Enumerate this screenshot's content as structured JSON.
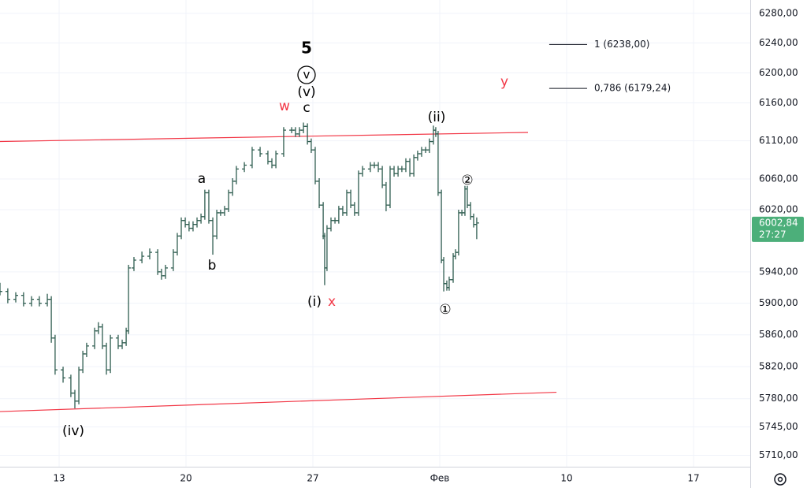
{
  "chart_data": {
    "type": "ohlc",
    "log_scale": true,
    "grid": true,
    "color": "#2f5d50",
    "x": [
      9.74,
      10.17,
      10.61,
      11.04,
      11.48,
      11.91,
      12.35,
      12.57,
      12.78,
      13.22,
      13.65,
      13.87,
      14.09,
      14.31,
      14.52,
      14.96,
      15.17,
      15.39,
      15.61,
      15.83,
      16.26,
      16.48,
      16.7,
      16.83,
      17.13,
      17.57,
      18.0,
      18.44,
      18.65,
      18.87,
      19.3,
      19.52,
      19.74,
      19.96,
      20.17,
      20.39,
      20.61,
      20.83,
      21.04,
      21.26,
      21.48,
      21.7,
      21.91,
      22.13,
      22.35,
      22.57,
      22.78,
      23.22,
      23.65,
      24.09,
      24.52,
      24.74,
      24.96,
      25.39,
      25.83,
      26.04,
      26.26,
      26.48,
      26.7,
      26.91,
      27.13,
      27.35,
      27.57,
      27.65,
      27.78,
      28.0,
      28.22,
      28.43,
      28.65,
      28.87,
      29.09,
      29.3,
      29.52,
      29.74,
      30.17,
      30.39,
      30.61,
      30.83,
      31.04,
      31.26,
      31.48,
      31.7,
      31.91,
      32.13,
      32.35,
      32.57,
      32.78,
      33.0,
      33.22,
      33.43,
      33.65,
      33.78,
      33.91,
      34.09,
      34.22,
      34.39,
      34.52,
      34.74,
      34.87,
      35.04,
      35.22,
      35.39,
      35.52,
      35.7,
      35.87,
      36.04
    ],
    "open": [
      5920,
      5915,
      5905,
      5910,
      5900,
      5905,
      5900,
      5905,
      5856,
      5816,
      5806,
      5787,
      5777,
      5816,
      5836,
      5846,
      5865,
      5870,
      5846,
      5816,
      5856,
      5846,
      5850,
      5865,
      5945,
      5955,
      5960,
      5965,
      5940,
      5935,
      5945,
      5965,
      5986,
      6006,
      6001,
      5996,
      6001,
      6006,
      6011,
      6042,
      6006,
      5986,
      6016,
      6016,
      6021,
      6042,
      6057,
      6073,
      6078,
      6098,
      6093,
      6083,
      6078,
      6093,
      6124,
      6124,
      6119,
      6124,
      6129,
      6109,
      6098,
      6057,
      6026,
      5986,
      5945,
      5996,
      6006,
      6006,
      6021,
      6016,
      6042,
      6026,
      6016,
      6067,
      6073,
      6078,
      6078,
      6073,
      6052,
      6026,
      6073,
      6067,
      6073,
      6073,
      6083,
      6067,
      6088,
      6093,
      6098,
      6098,
      6109,
      6124,
      6119,
      6042,
      5955,
      5925,
      5920,
      5930,
      5960,
      5965,
      6016,
      6016,
      6047,
      6026,
      6011,
      6001
    ],
    "high": [
      5926,
      5919,
      5914,
      5914,
      5909,
      5909,
      5912,
      5909,
      5860,
      5820,
      5810,
      5791,
      5820,
      5840,
      5850,
      5869,
      5876,
      5874,
      5850,
      5860,
      5860,
      5854,
      5869,
      5949,
      5959,
      5966,
      5970,
      5969,
      5944,
      5949,
      5969,
      5990,
      6010,
      6010,
      6005,
      6005,
      6010,
      6015,
      6046,
      6046,
      6010,
      6020,
      6020,
      6025,
      6046,
      6061,
      6077,
      6082,
      6102,
      6102,
      6097,
      6087,
      6097,
      6128,
      6128,
      6128,
      6128,
      6134,
      6133,
      6113,
      6102,
      6061,
      6030,
      5990,
      6000,
      6010,
      6010,
      6025,
      6025,
      6046,
      6046,
      6030,
      6071,
      6077,
      6082,
      6082,
      6082,
      6077,
      6056,
      6077,
      6077,
      6077,
      6077,
      6087,
      6087,
      6092,
      6097,
      6102,
      6102,
      6113,
      6130,
      6128,
      6123,
      6046,
      5959,
      5929,
      5934,
      5964,
      5969,
      6020,
      6020,
      6051,
      6051,
      6030,
      6015,
      6010
    ],
    "low": [
      5910,
      5900,
      5901,
      5896,
      5896,
      5896,
      5896,
      5850,
      5810,
      5800,
      5782,
      5768,
      5773,
      5812,
      5832,
      5842,
      5861,
      5842,
      5810,
      5812,
      5842,
      5842,
      5846,
      5861,
      5941,
      5951,
      5956,
      5936,
      5930,
      5931,
      5941,
      5961,
      5982,
      5997,
      5992,
      5992,
      5997,
      6002,
      6007,
      6002,
      5962,
      5982,
      6012,
      6012,
      6017,
      6038,
      6053,
      6069,
      6074,
      6089,
      6079,
      6074,
      6074,
      6089,
      6120,
      6115,
      6115,
      6120,
      6105,
      6094,
      6053,
      6022,
      5982,
      5923,
      5941,
      5992,
      6002,
      6002,
      6012,
      6012,
      6022,
      6012,
      6012,
      6063,
      6069,
      6074,
      6069,
      6048,
      6018,
      6022,
      6063,
      6063,
      6069,
      6069,
      6063,
      6063,
      6084,
      6089,
      6094,
      6094,
      6105,
      6115,
      6038,
      5951,
      5915,
      5916,
      5916,
      5926,
      5956,
      5961,
      6012,
      6012,
      6022,
      6007,
      5997,
      5982
    ],
    "close": [
      5915,
      5905,
      5910,
      5900,
      5905,
      5900,
      5905,
      5856,
      5816,
      5806,
      5787,
      5777,
      5816,
      5836,
      5846,
      5865,
      5870,
      5846,
      5816,
      5856,
      5846,
      5850,
      5865,
      5945,
      5955,
      5960,
      5965,
      5940,
      5935,
      5945,
      5965,
      5986,
      6006,
      6001,
      5996,
      6001,
      6006,
      6011,
      6042,
      6006,
      5986,
      6016,
      6016,
      6021,
      6042,
      6057,
      6073,
      6078,
      6098,
      6093,
      6083,
      6078,
      6093,
      6124,
      6124,
      6119,
      6124,
      6129,
      6109,
      6098,
      6057,
      6026,
      5986,
      5945,
      5996,
      6006,
      6006,
      6021,
      6016,
      6042,
      6026,
      6016,
      6067,
      6073,
      6078,
      6078,
      6073,
      6052,
      6026,
      6073,
      6067,
      6073,
      6073,
      6083,
      6067,
      6088,
      6093,
      6098,
      6098,
      6109,
      6124,
      6119,
      6042,
      5955,
      5925,
      5920,
      5930,
      5960,
      5965,
      6016,
      6016,
      6047,
      6026,
      6011,
      6001,
      6002.84
    ],
    "xlim": [
      9.74,
      51.13
    ],
    "xticks": [
      13,
      20,
      27,
      {
        "value": 34,
        "label": "Фев"
      },
      {
        "value": 41,
        "label": "10"
      },
      {
        "value": 48,
        "label": "17"
      }
    ],
    "ylim": [
      5696,
      6298
    ],
    "yticks": [
      {
        "value": 5710,
        "label": "5710,00"
      },
      {
        "value": 5745,
        "label": "5745,00"
      },
      {
        "value": 5780,
        "label": "5780,00"
      },
      {
        "value": 5820,
        "label": "5820,00"
      },
      {
        "value": 5860,
        "label": "5860,00"
      },
      {
        "value": 5900,
        "label": "5900,00"
      },
      {
        "value": 5940,
        "label": "5940,00"
      },
      {
        "value": 6020,
        "label": "6020,00"
      },
      {
        "value": 6060,
        "label": "6060,00"
      },
      {
        "value": 6110,
        "label": "6110,00"
      },
      {
        "value": 6160,
        "label": "6160,00"
      },
      {
        "value": 6200,
        "label": "6200,00"
      },
      {
        "value": 6240,
        "label": "6240,00"
      },
      {
        "value": 6280,
        "label": "6280,00"
      }
    ],
    "last_price": {
      "value": 6002.84,
      "label": "6002,84",
      "timer": "27:27",
      "color": "#4caf7a"
    },
    "trendlines": [
      {
        "color": "#f23645",
        "x": [
          9.74,
          38.87
        ],
        "y": [
          6109,
          6121
        ]
      },
      {
        "color": "#f23645",
        "x": [
          9.74,
          40.44
        ],
        "y": [
          5764,
          5788
        ]
      }
    ],
    "levels": [
      {
        "value": 6238,
        "label": "1 (6238,00)",
        "x": [
          40.04,
          42.13
        ]
      },
      {
        "value": 6179.24,
        "label": "0,786 (6179,24)",
        "x": [
          40.04,
          42.13
        ]
      }
    ],
    "annotations": [
      {
        "text": "5",
        "color": "#000000"
      },
      {
        "text": "v",
        "color": "#000000"
      },
      {
        "text": "(v)",
        "color": "#000000"
      },
      {
        "text": "c",
        "color": "#000000"
      },
      {
        "text": "w",
        "color": "#f23645"
      },
      {
        "text": "(ii)",
        "color": "#000000"
      },
      {
        "text": "a",
        "color": "#000000"
      },
      {
        "text": "b",
        "color": "#000000"
      },
      {
        "text": "(i)",
        "color": "#000000"
      },
      {
        "text": "x",
        "color": "#f23645"
      },
      {
        "text": "y",
        "color": "#f23645"
      },
      {
        "text": "②",
        "color": "#000000"
      },
      {
        "text": "①",
        "color": "#000000"
      },
      {
        "text": "(iv)",
        "color": "#000000"
      }
    ]
  }
}
